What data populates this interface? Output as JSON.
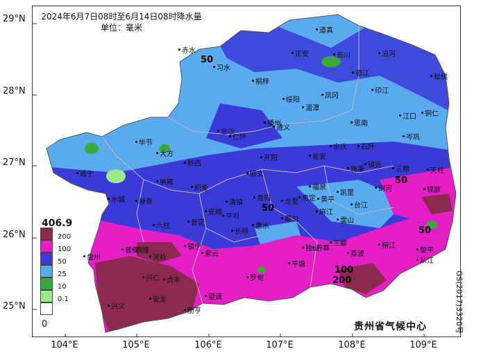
{
  "title": {
    "line1": "2024年6月7日08时至6月14日08时降水量",
    "line2": "单位：毫米"
  },
  "credit": "贵州省气候中心",
  "side_code": "GS(2017)3320号",
  "lat_labels": [
    "29°N",
    "28°N",
    "27°N",
    "26°N",
    "25°N"
  ],
  "lon_labels": [
    "104°E",
    "105°E",
    "106°E",
    "107°E",
    "108°E",
    "109°E"
  ],
  "legend": {
    "max_value": "406.9",
    "min_value": "0",
    "items": [
      {
        "label": "200",
        "color": "#8b2a4e"
      },
      {
        "label": "100",
        "color": "#e61ec8"
      },
      {
        "label": "50",
        "color": "#3a3ad8"
      },
      {
        "label": "25",
        "color": "#5aaaf0"
      },
      {
        "label": "10",
        "color": "#3aa83a"
      },
      {
        "label": "0.1",
        "color": "#9ee88c"
      },
      {
        "label": "",
        "color": "#ffffff"
      }
    ]
  },
  "contour_labels": [
    "50",
    "50",
    "50",
    "50",
    "100",
    "200"
  ],
  "cities": [
    "道真",
    "正安",
    "务川",
    "沿河",
    "赤水",
    "习水",
    "桐梓",
    "德江",
    "印江",
    "松桃",
    "绥阳",
    "湄潭",
    "凤冈",
    "思南",
    "铜仁",
    "江口",
    "仁怀",
    "遵义",
    "石阡",
    "金沙",
    "播州",
    "毕节",
    "黔西",
    "大方",
    "修文",
    "开阳",
    "瓮安",
    "余庆",
    "镇远",
    "施秉",
    "三穗",
    "天柱",
    "威宁",
    "赫章",
    "纳雍",
    "织金",
    "贵阳",
    "福泉",
    "凯里",
    "剑河",
    "锦屏",
    "水城",
    "六枝",
    "普定",
    "安顺",
    "平坝",
    "清镇",
    "龙里",
    "贵定",
    "麻江",
    "台江",
    "雷山",
    "榕江",
    "黎平",
    "盘州",
    "晴隆",
    "关岭",
    "镇宁",
    "紫云",
    "长顺",
    "惠水",
    "都匀",
    "三都",
    "丹寨",
    "从江",
    "兴仁",
    "贞丰",
    "望谟",
    "罗甸",
    "平塘",
    "独山",
    "荔波",
    "兴义",
    "安龙",
    "册亨",
    "普安",
    "岑巩",
    "黄平"
  ]
}
